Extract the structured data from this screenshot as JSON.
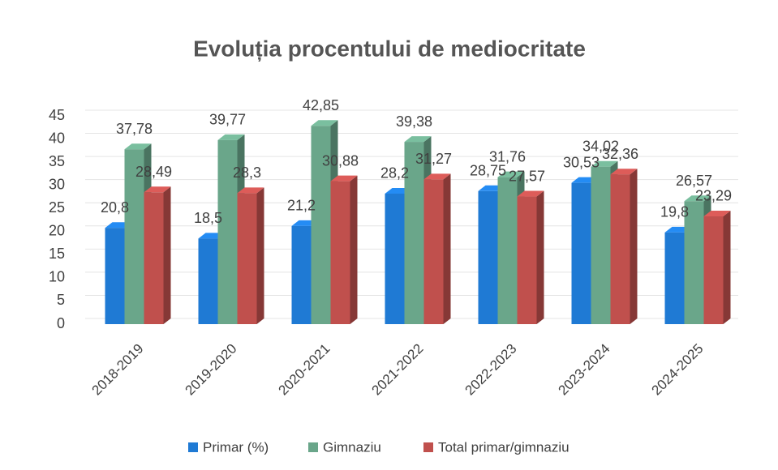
{
  "chart_data": {
    "type": "bar3d",
    "title": "Evoluția procentului de mediocritate",
    "categories": [
      "2018-2019",
      "2019-2020",
      "2020-2021",
      "2021-2022",
      "2022-2023",
      "2023-2024",
      "2024-2025"
    ],
    "series": [
      {
        "name": "Primar (%)",
        "color": "#1f7ad4",
        "values": [
          20.8,
          18.5,
          21.2,
          28.2,
          28.75,
          30.53,
          19.8
        ],
        "value_labels": [
          "20,8",
          "18,5",
          "21,2",
          "28,2",
          "28,75",
          "30,53",
          "19,8"
        ]
      },
      {
        "name": "Gimnaziu",
        "color": "#6aa68a",
        "values": [
          37.78,
          39.77,
          42.85,
          39.38,
          31.76,
          34.02,
          26.57
        ],
        "value_labels": [
          "37,78",
          "39,77",
          "42,85",
          "39,38",
          "31,76",
          "34,02",
          "26,57"
        ]
      },
      {
        "name": "Total primar/gimnaziu",
        "color": "#c0504d",
        "values": [
          28.49,
          28.3,
          30.88,
          31.27,
          27.57,
          32.36,
          23.29
        ],
        "value_labels": [
          "28,49",
          "28,3",
          "30,88",
          "31,27",
          "27,57",
          "32,36",
          "23,29"
        ]
      }
    ],
    "ylim": [
      0,
      45
    ],
    "yticks": [
      0,
      5,
      10,
      15,
      20,
      25,
      30,
      35,
      40,
      45
    ],
    "grid": true,
    "legend": "bottom"
  }
}
